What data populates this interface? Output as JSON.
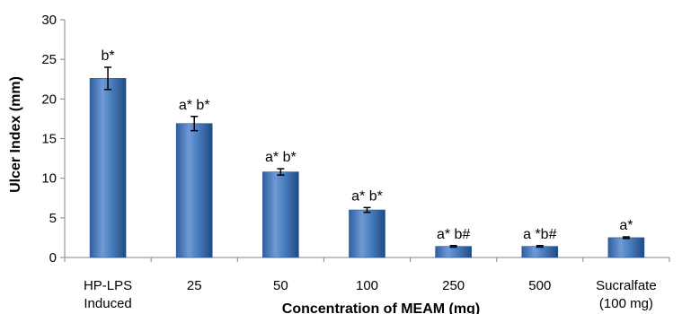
{
  "chart_data": {
    "type": "bar",
    "title": "",
    "xlabel": "Concentration of MEAM (mg)",
    "ylabel": "Ulcer Index (mm)",
    "ylim": [
      0,
      30
    ],
    "yticks": [
      0,
      5,
      10,
      15,
      20,
      25,
      30
    ],
    "grid": false,
    "bar_color": "#4a7ebf",
    "categories": [
      [
        "HP-LPS",
        "Induced"
      ],
      [
        "25"
      ],
      [
        "50"
      ],
      [
        "100"
      ],
      [
        "250"
      ],
      [
        "500"
      ],
      [
        "Sucralfate",
        "(100 mg)"
      ]
    ],
    "values": [
      22.6,
      16.9,
      10.8,
      6.0,
      1.4,
      1.4,
      2.5
    ],
    "errors": [
      1.4,
      0.9,
      0.4,
      0.3,
      0.1,
      0.1,
      0.1
    ],
    "data_labels": [
      "b*",
      "a* b*",
      "a* b*",
      "a* b*",
      "a* b#",
      "a *b#",
      "a*"
    ]
  }
}
